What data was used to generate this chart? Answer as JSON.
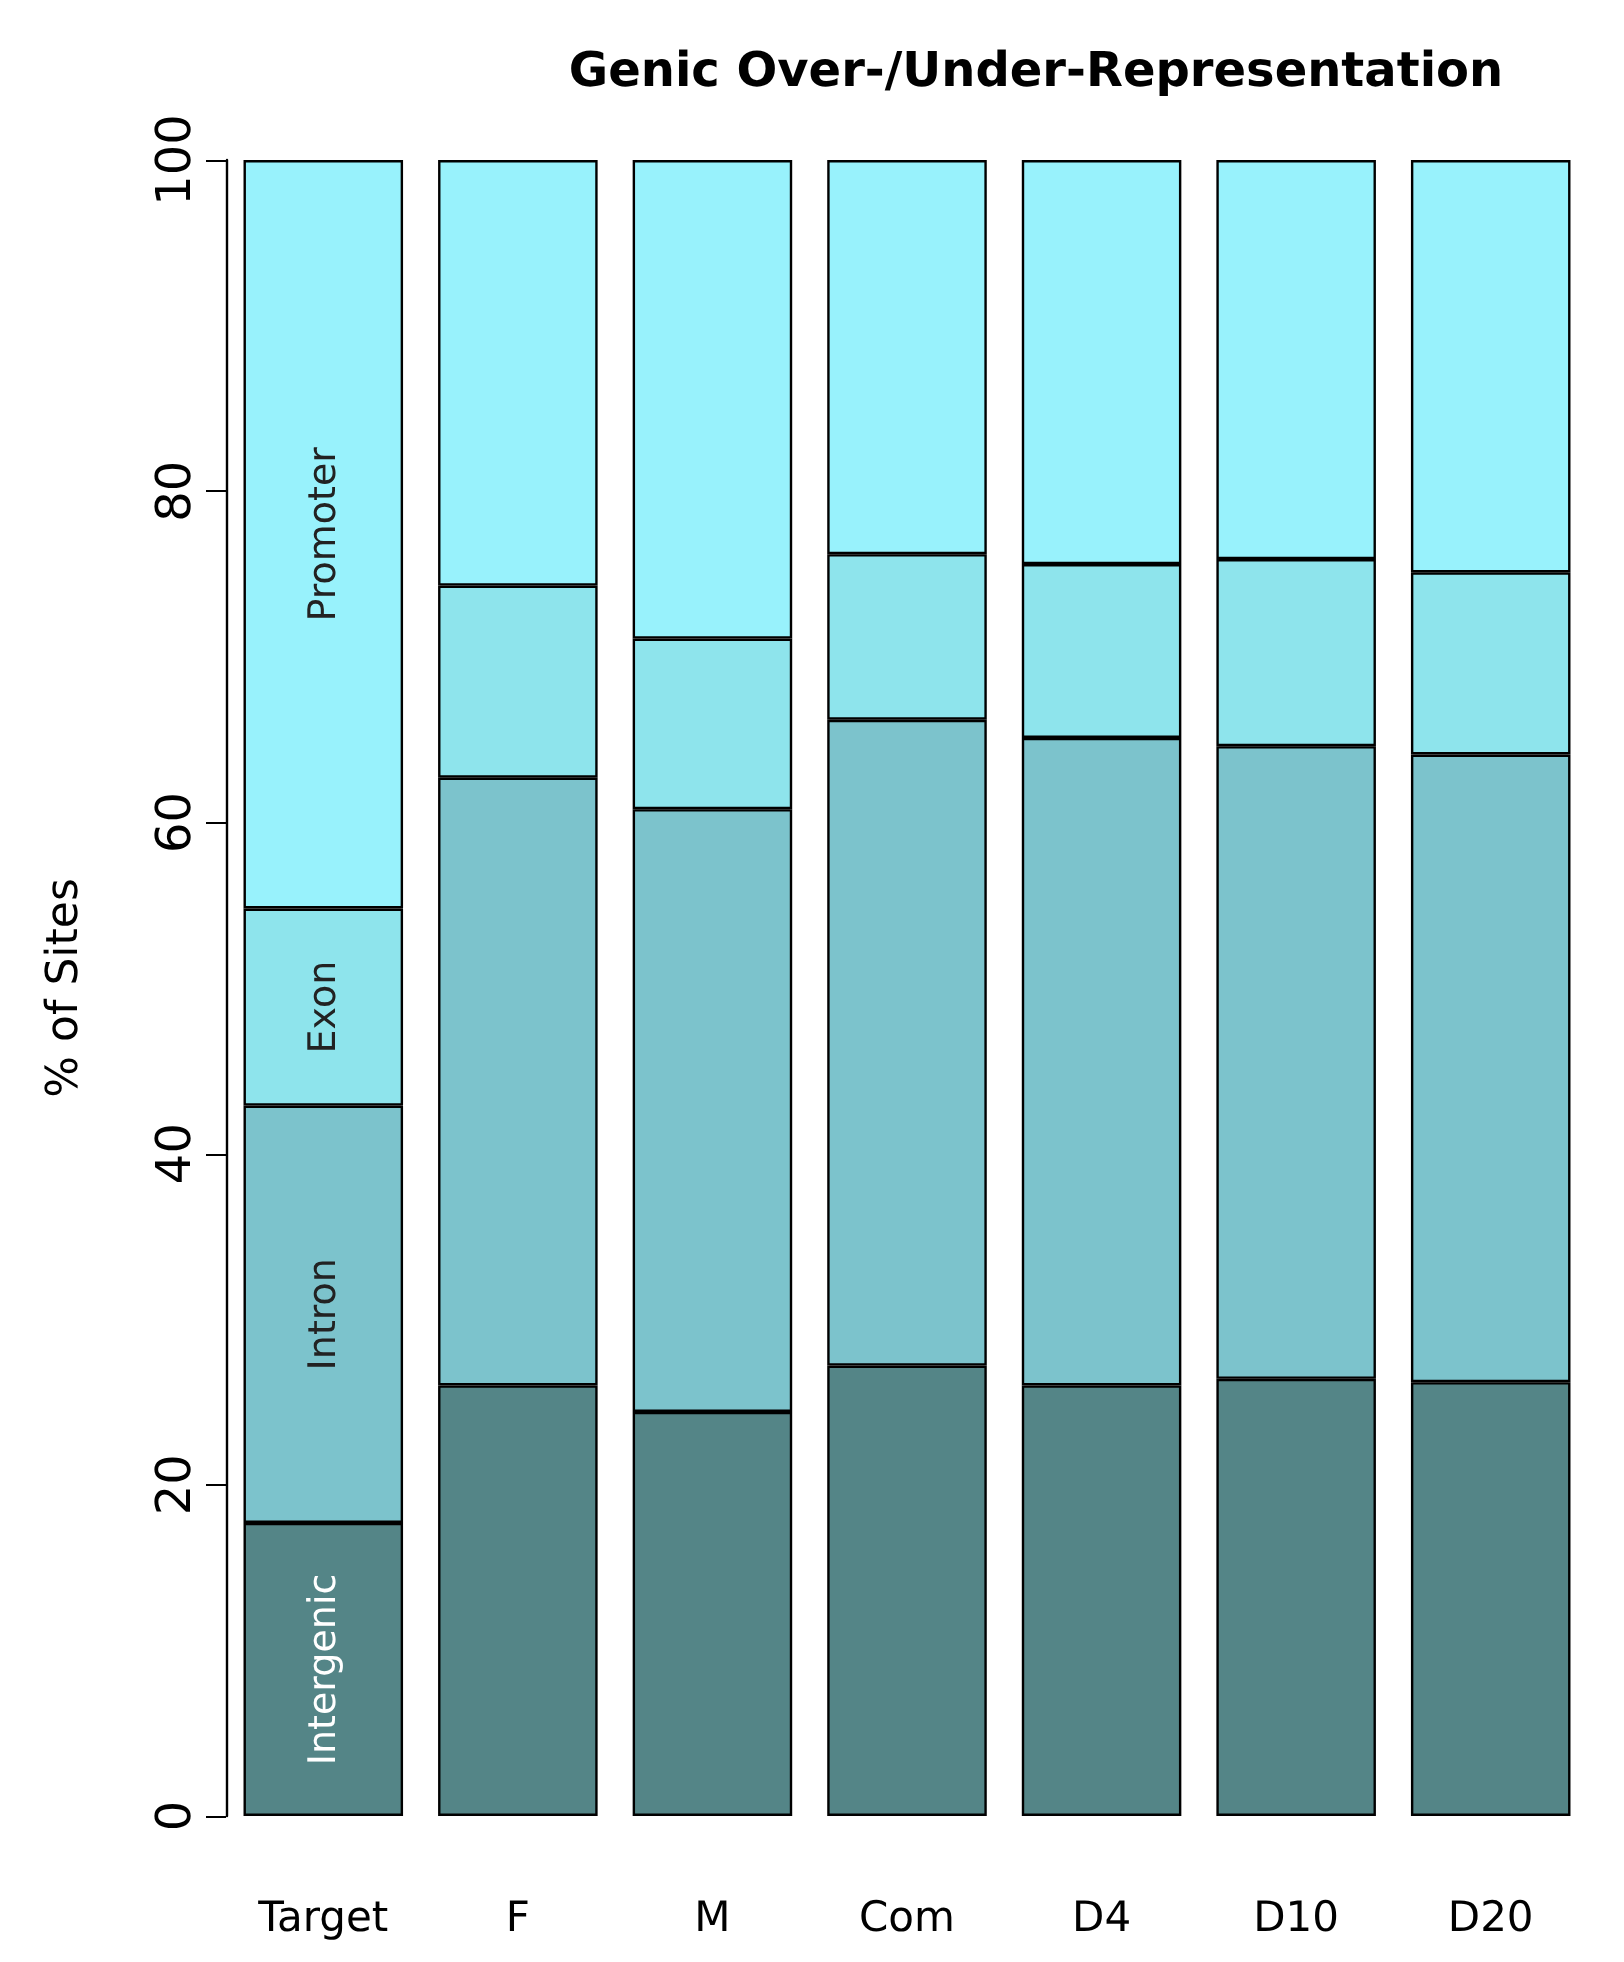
{
  "chart_data": {
    "type": "bar",
    "title": "Genic Over-/Under-Representation",
    "ylabel": "% of Sites",
    "stacked": true,
    "categories": [
      "Target",
      "F",
      "M",
      "Com",
      "D4",
      "D10",
      "D20"
    ],
    "series": [
      {
        "name": "Intergenic",
        "color": "#548587",
        "values": [
          17.7,
          26.0,
          24.4,
          27.2,
          26.0,
          26.4,
          26.2
        ]
      },
      {
        "name": "Intron",
        "color": "#7cc3cc",
        "values": [
          25.2,
          36.7,
          36.4,
          39.0,
          39.1,
          38.2,
          37.9
        ]
      },
      {
        "name": "Exon",
        "color": "#8ee4ec",
        "values": [
          11.9,
          11.6,
          10.3,
          10.0,
          10.5,
          11.3,
          11.0
        ]
      },
      {
        "name": "Promoter",
        "color": "#98f2fc",
        "values": [
          45.2,
          25.7,
          28.9,
          23.8,
          24.4,
          24.1,
          24.9
        ]
      }
    ],
    "ylim": [
      0,
      100
    ],
    "yticks": [
      0,
      20,
      40,
      60,
      80,
      100
    ],
    "grid": false,
    "legend": false
  }
}
